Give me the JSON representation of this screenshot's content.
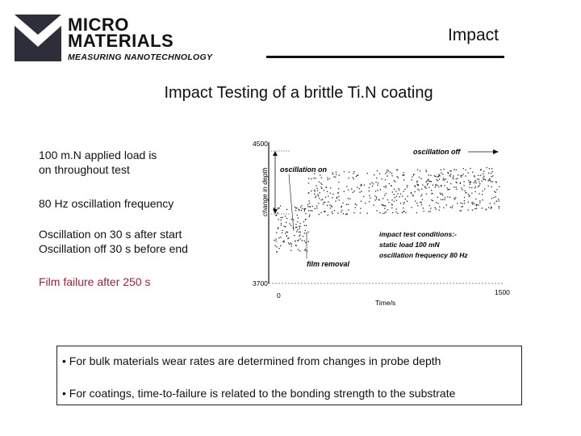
{
  "logo": {
    "line1": "MICRO",
    "line2": "MATERIALS",
    "tagline": "MEASURING NANOTECHNOLOGY"
  },
  "section_label": "Impact",
  "slide_title": "Impact Testing of a brittle Ti.N coating",
  "notes": {
    "load_1": "100 m.N applied load is",
    "load_2": "on throughout test",
    "frequency": "80 Hz oscillation frequency",
    "osc_on": "Oscillation on 30 s after start",
    "osc_off": "Oscillation off 30 s before end",
    "failure": "Film failure after 250 s"
  },
  "colors": {
    "failure_text": "#a0233a",
    "text": "#111111"
  },
  "chart_data": {
    "type": "scatter",
    "xlabel": "Time/s",
    "ylabel": "change in depth",
    "x_ticks": [
      "0",
      "1500"
    ],
    "y_ticks": [
      "4500",
      "3700"
    ],
    "xlim": [
      0,
      1500
    ],
    "ylim": [
      3700,
      4500
    ],
    "grid": false,
    "annotations": {
      "osc_on": "oscillation on",
      "osc_off": "oscillation off",
      "film_removal": "film removal",
      "cond_title": "impact test conditions:-",
      "cond_load": "static load 100 mN",
      "cond_freq": "oscillation frequency 80 Hz"
    },
    "phases": [
      {
        "t_start": 30,
        "t_end": 250,
        "depth_low": 3880,
        "depth_high": 4150
      },
      {
        "t_start": 250,
        "t_end": 1470,
        "depth_low": 4080,
        "depth_high": 4340
      }
    ]
  },
  "summary": {
    "line1": "• For bulk materials wear rates are determined from changes in probe depth",
    "line2": "• For coatings, time-to-failure is related to the bonding strength to the substrate"
  }
}
